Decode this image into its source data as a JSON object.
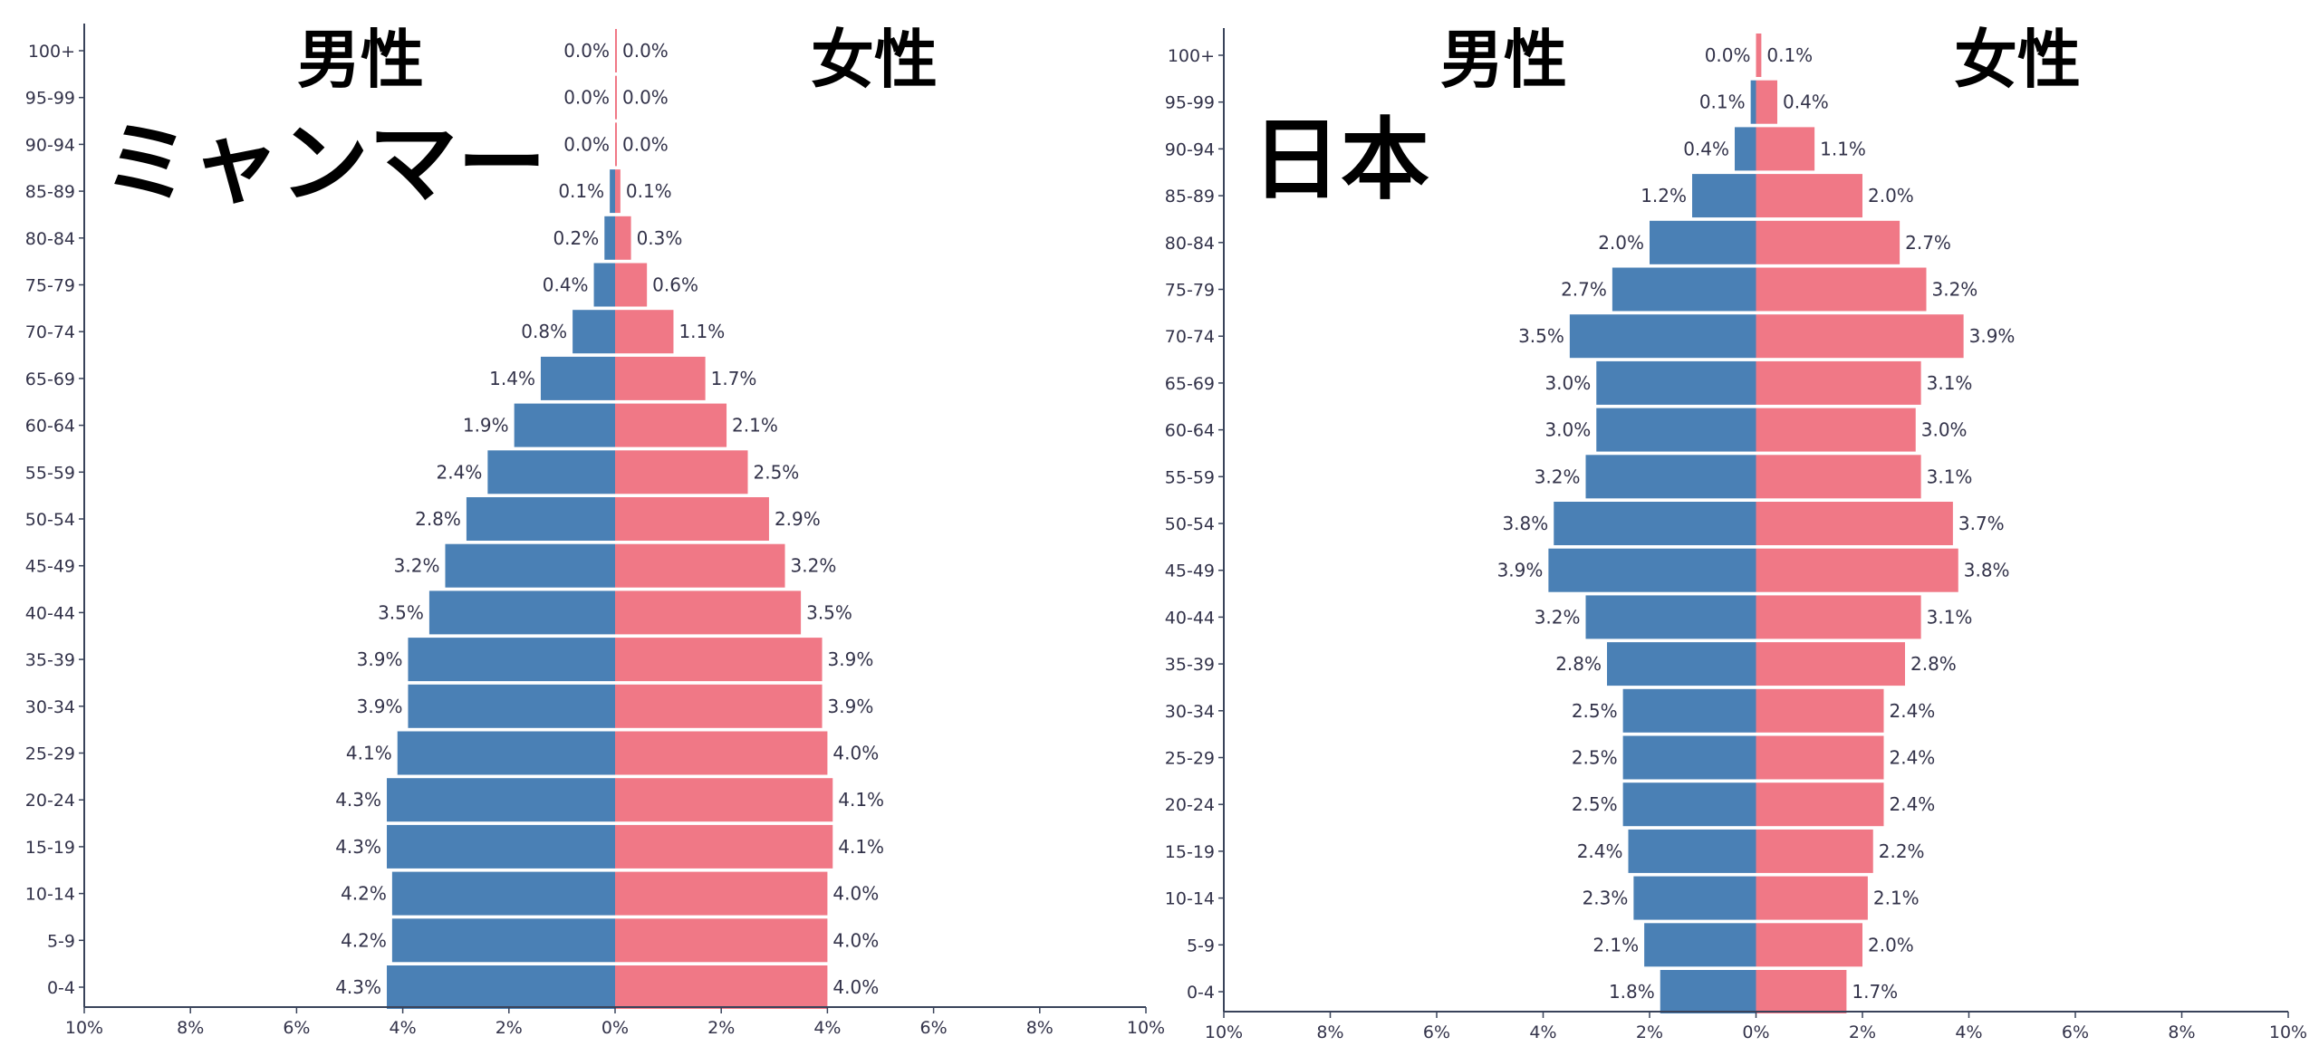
{
  "colors": {
    "male": "#4a80b5",
    "female": "#f07886",
    "axis": "#39435a",
    "text": "#33334a",
    "title": "#000000"
  },
  "chart_data": [
    {
      "type": "bar",
      "orientation": "horizontal-pyramid",
      "country": "ミャンマー",
      "male_label": "男性",
      "female_label": "女性",
      "categories": [
        "100+",
        "95-99",
        "90-94",
        "85-89",
        "80-84",
        "75-79",
        "70-74",
        "65-69",
        "60-64",
        "55-59",
        "50-54",
        "45-49",
        "40-44",
        "35-39",
        "30-34",
        "25-29",
        "20-24",
        "15-19",
        "10-14",
        "5-9",
        "0-4"
      ],
      "series": [
        {
          "name": "男性",
          "values": [
            0.0,
            0.0,
            0.0,
            0.1,
            0.2,
            0.4,
            0.8,
            1.4,
            1.9,
            2.4,
            2.8,
            3.2,
            3.5,
            3.9,
            3.9,
            4.1,
            4.3,
            4.3,
            4.2,
            4.2,
            4.3
          ]
        },
        {
          "name": "女性",
          "values": [
            0.0,
            0.0,
            0.0,
            0.1,
            0.3,
            0.6,
            1.1,
            1.7,
            2.1,
            2.5,
            2.9,
            3.2,
            3.5,
            3.9,
            3.9,
            4.0,
            4.1,
            4.1,
            4.0,
            4.0,
            4.0
          ]
        }
      ],
      "xlim": [
        -10,
        10
      ],
      "xticks": [
        "10%",
        "8%",
        "6%",
        "4%",
        "2%",
        "0%",
        "2%",
        "4%",
        "6%",
        "8%",
        "10%"
      ],
      "value_suffix": "%"
    },
    {
      "type": "bar",
      "orientation": "horizontal-pyramid",
      "country": "日本",
      "male_label": "男性",
      "female_label": "女性",
      "categories": [
        "100+",
        "95-99",
        "90-94",
        "85-89",
        "80-84",
        "75-79",
        "70-74",
        "65-69",
        "60-64",
        "55-59",
        "50-54",
        "45-49",
        "40-44",
        "35-39",
        "30-34",
        "25-29",
        "20-24",
        "15-19",
        "10-14",
        "5-9",
        "0-4"
      ],
      "series": [
        {
          "name": "男性",
          "values": [
            0.0,
            0.1,
            0.4,
            1.2,
            2.0,
            2.7,
            3.5,
            3.0,
            3.0,
            3.2,
            3.8,
            3.9,
            3.2,
            2.8,
            2.5,
            2.5,
            2.5,
            2.4,
            2.3,
            2.1,
            1.8
          ]
        },
        {
          "name": "女性",
          "values": [
            0.1,
            0.4,
            1.1,
            2.0,
            2.7,
            3.2,
            3.9,
            3.1,
            3.0,
            3.1,
            3.7,
            3.8,
            3.1,
            2.8,
            2.4,
            2.4,
            2.4,
            2.2,
            2.1,
            2.0,
            1.7
          ]
        }
      ],
      "xlim": [
        -10,
        10
      ],
      "xticks": [
        "10%",
        "8%",
        "6%",
        "4%",
        "2%",
        "0%",
        "2%",
        "4%",
        "6%",
        "8%",
        "10%"
      ],
      "value_suffix": "%"
    }
  ]
}
